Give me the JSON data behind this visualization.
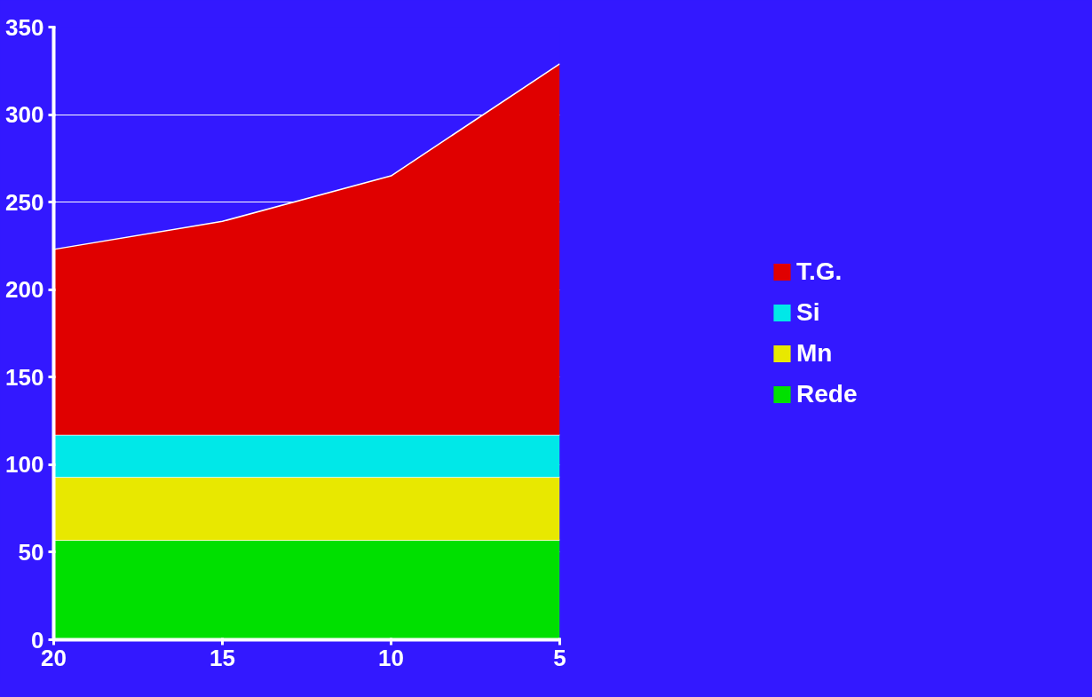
{
  "chart_data": {
    "type": "area",
    "stacked": true,
    "x": [
      20,
      15,
      10,
      5
    ],
    "series": [
      {
        "name": "Rede",
        "color": "#00e000",
        "values": [
          57,
          57,
          57,
          57
        ]
      },
      {
        "name": "Mn",
        "color": "#e8e800",
        "values": [
          36,
          36,
          36,
          36
        ]
      },
      {
        "name": "Si",
        "color": "#00e8e8",
        "values": [
          24,
          24,
          24,
          24
        ]
      },
      {
        "name": "T.G.",
        "color": "#e00000",
        "values": [
          106,
          122,
          148,
          212
        ]
      }
    ],
    "xlim": [
      20,
      5
    ],
    "xticks": [
      20,
      15,
      10,
      5
    ],
    "ylim": [
      0,
      350
    ],
    "yticks": [
      0,
      50,
      100,
      150,
      200,
      250,
      300,
      350
    ],
    "grid": "y",
    "legend": "right"
  }
}
